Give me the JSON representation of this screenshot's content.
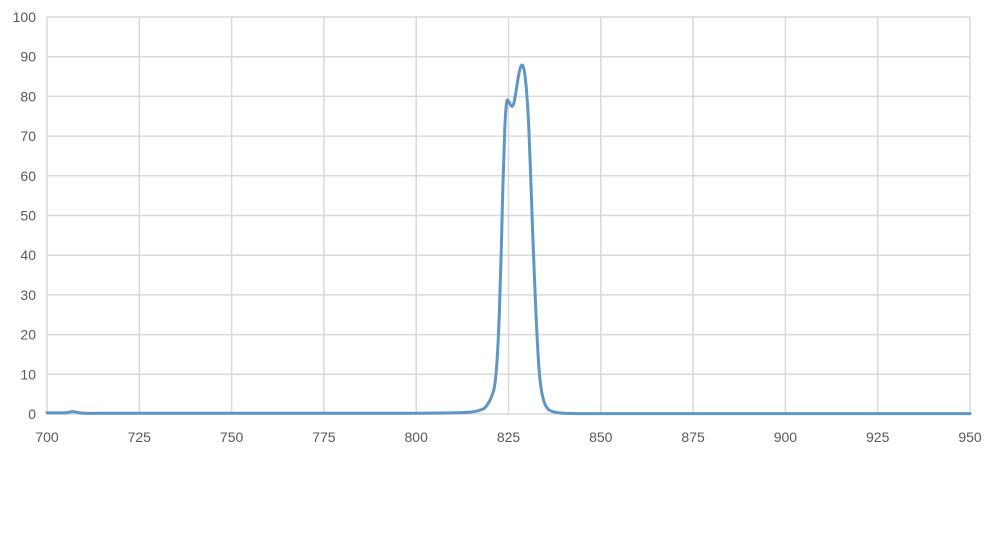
{
  "chart_data": {
    "type": "line",
    "title": "",
    "xlabel": "",
    "ylabel": "",
    "xlim": [
      700,
      950
    ],
    "ylim": [
      0,
      100
    ],
    "x_ticks": [
      700,
      725,
      750,
      775,
      800,
      825,
      850,
      875,
      900,
      925,
      950
    ],
    "y_ticks": [
      0,
      10,
      20,
      30,
      40,
      50,
      60,
      70,
      80,
      90,
      100
    ],
    "grid": true,
    "legend": "none",
    "colors": {
      "line": "#6096c4",
      "grid": "#d9d9d9",
      "text": "#595959"
    },
    "series": [
      {
        "x": [
          700,
          705,
          707,
          710,
          720,
          750,
          780,
          800,
          810,
          815,
          818,
          819,
          820,
          821,
          821.5,
          822,
          822.5,
          823,
          823.5,
          824,
          824.5,
          825,
          825.5,
          826,
          826.5,
          827,
          827.5,
          828,
          828.5,
          829,
          829.5,
          830,
          830.5,
          831,
          831.5,
          832,
          832.5,
          833,
          833.5,
          834,
          834.5,
          835,
          835.5,
          836,
          837,
          838,
          840,
          845,
          850,
          900,
          950
        ],
        "y": [
          0.3,
          0.3,
          0.6,
          0.2,
          0.2,
          0.2,
          0.2,
          0.2,
          0.3,
          0.5,
          1.2,
          2,
          3.5,
          6,
          9,
          15,
          25,
          40,
          58,
          72,
          78.5,
          78.8,
          78,
          77.5,
          78.5,
          81,
          84,
          86.5,
          87.8,
          87.5,
          85,
          80,
          72,
          60,
          47,
          35,
          24,
          15,
          9,
          5.5,
          3.5,
          2.2,
          1.5,
          1,
          0.6,
          0.4,
          0.2,
          0.1,
          0.1,
          0.1,
          0.1
        ]
      }
    ]
  }
}
